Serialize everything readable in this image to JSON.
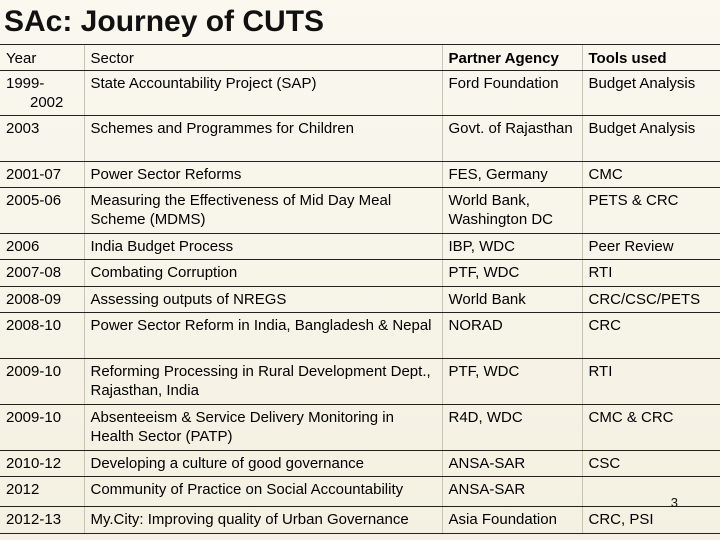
{
  "slide": {
    "title": "SAc: Journey of CUTS",
    "page_number": "3"
  },
  "table": {
    "headers": {
      "year": "Year",
      "sector": "Sector",
      "partner": "Partner Agency",
      "tools": "Tools used"
    },
    "rows": [
      {
        "year_a": "1999-",
        "year_b": "2002",
        "sector": "State Accountability Project (SAP)",
        "partner": "Ford Foundation",
        "tools": "Budget Analysis"
      },
      {
        "year": "2003",
        "sector": "Schemes and Programmes for Children",
        "partner": "Govt. of Rajasthan",
        "tools": "Budget Analysis"
      },
      {
        "year": "2001-07",
        "sector": "Power Sector Reforms",
        "partner": "FES, Germany",
        "tools": "CMC"
      },
      {
        "year": "2005-06",
        "sector": "Measuring the Effectiveness of Mid Day Meal Scheme (MDMS)",
        "partner": "World Bank, Washington DC",
        "tools": "PETS & CRC"
      },
      {
        "year": "2006",
        "sector": "India Budget Process",
        "partner": "IBP, WDC",
        "tools": "Peer Review"
      },
      {
        "year": "2007-08",
        "sector": "Combating Corruption",
        "partner": "PTF, WDC",
        "tools": "RTI"
      },
      {
        "year": "2008-09",
        "sector": "Assessing outputs of NREGS",
        "partner": "World Bank",
        "tools": "CRC/CSC/PETS"
      },
      {
        "year": "2008-10",
        "sector": "Power Sector Reform in India, Bangladesh & Nepal",
        "partner": "NORAD",
        "tools": "CRC"
      },
      {
        "year": "2009-10",
        "sector": "Reforming Processing in Rural Development Dept., Rajasthan, India",
        "partner": "PTF, WDC",
        "tools": "RTI"
      },
      {
        "year": "2009-10",
        "sector": "Absenteeism & Service Delivery Monitoring in Health Sector (PATP)",
        "partner": "R4D, WDC",
        "tools": "CMC & CRC"
      },
      {
        "year": "2010-12",
        "sector": "Developing a culture of good governance",
        "partner": "ANSA-SAR",
        "tools": "CSC"
      },
      {
        "year": "2012",
        "sector": "Community of Practice on Social Accountability",
        "partner": "ANSA-SAR",
        "tools": ""
      },
      {
        "year": "2012-13",
        "sector": "My.City: Improving quality of Urban Governance",
        "partner": "Asia Foundation",
        "tools": "CRC, PSI"
      }
    ]
  }
}
